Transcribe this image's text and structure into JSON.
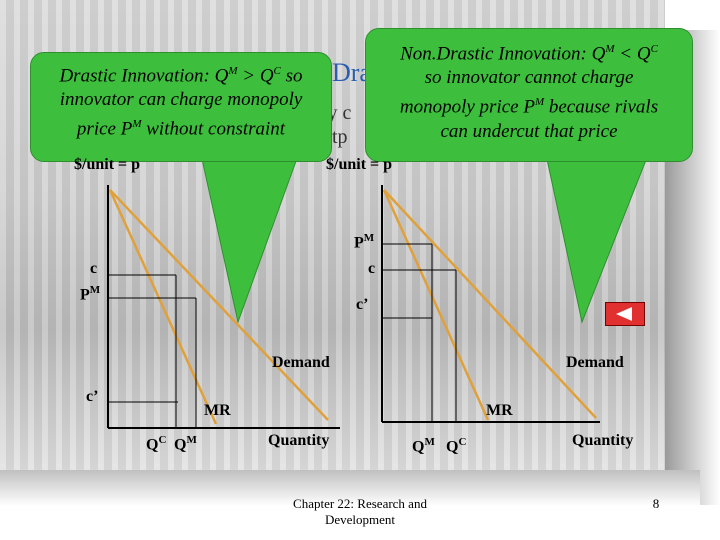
{
  "colors": {
    "callout": "#3dbf3d",
    "demand": "#e0a03a",
    "axes": "#000000",
    "nav": "#e03030"
  },
  "callout_left": {
    "line1_pre": "Drastic Innovation: Q",
    "line1_sup1": "M",
    "line1_mid": " > Q",
    "line1_sup2": "C",
    "line1_post": " so",
    "line2": "innovator can charge monopoly",
    "line3_pre": "price P",
    "line3_sup": "M",
    "line3_post": " without constraint"
  },
  "callout_right": {
    "line1_pre": "Non.Drastic Innovation: Q",
    "line1_sup1": "M",
    "line1_mid": " < Q",
    "line1_sup2": "C",
    "line2": "so innovator cannot charge",
    "line3_pre": "monopoly price P",
    "line3_sup": "M",
    "line3_post": " because rivals",
    "line4": "can undercut that price"
  },
  "title_peek": {
    "a": "Dra",
    "b": "ly c",
    "c": "utp"
  },
  "left_chart": {
    "ylabel": "$/unit = p",
    "c_label": "c",
    "pm_label": "P",
    "pm_sup": "M",
    "cprime_label": "c’",
    "demand_label": "Demand",
    "mr_label": "MR",
    "qc_label": "Q",
    "qc_sup": "C",
    "qm_label": "Q",
    "qm_sup": "M",
    "xlabel": "Quantity"
  },
  "right_chart": {
    "ylabel": "$/unit = p",
    "pm_label": "P",
    "pm_sup": "M",
    "c_label": "c",
    "cprime_label": "c’",
    "demand_label": "Demand",
    "mr_label": "MR",
    "qm_label": "Q",
    "qm_sup": "M",
    "qc_label": "Q",
    "qc_sup": "C",
    "xlabel": "Quantity"
  },
  "footer": {
    "line1": "Chapter 22: Research and",
    "line2": "Development",
    "page": "8"
  }
}
